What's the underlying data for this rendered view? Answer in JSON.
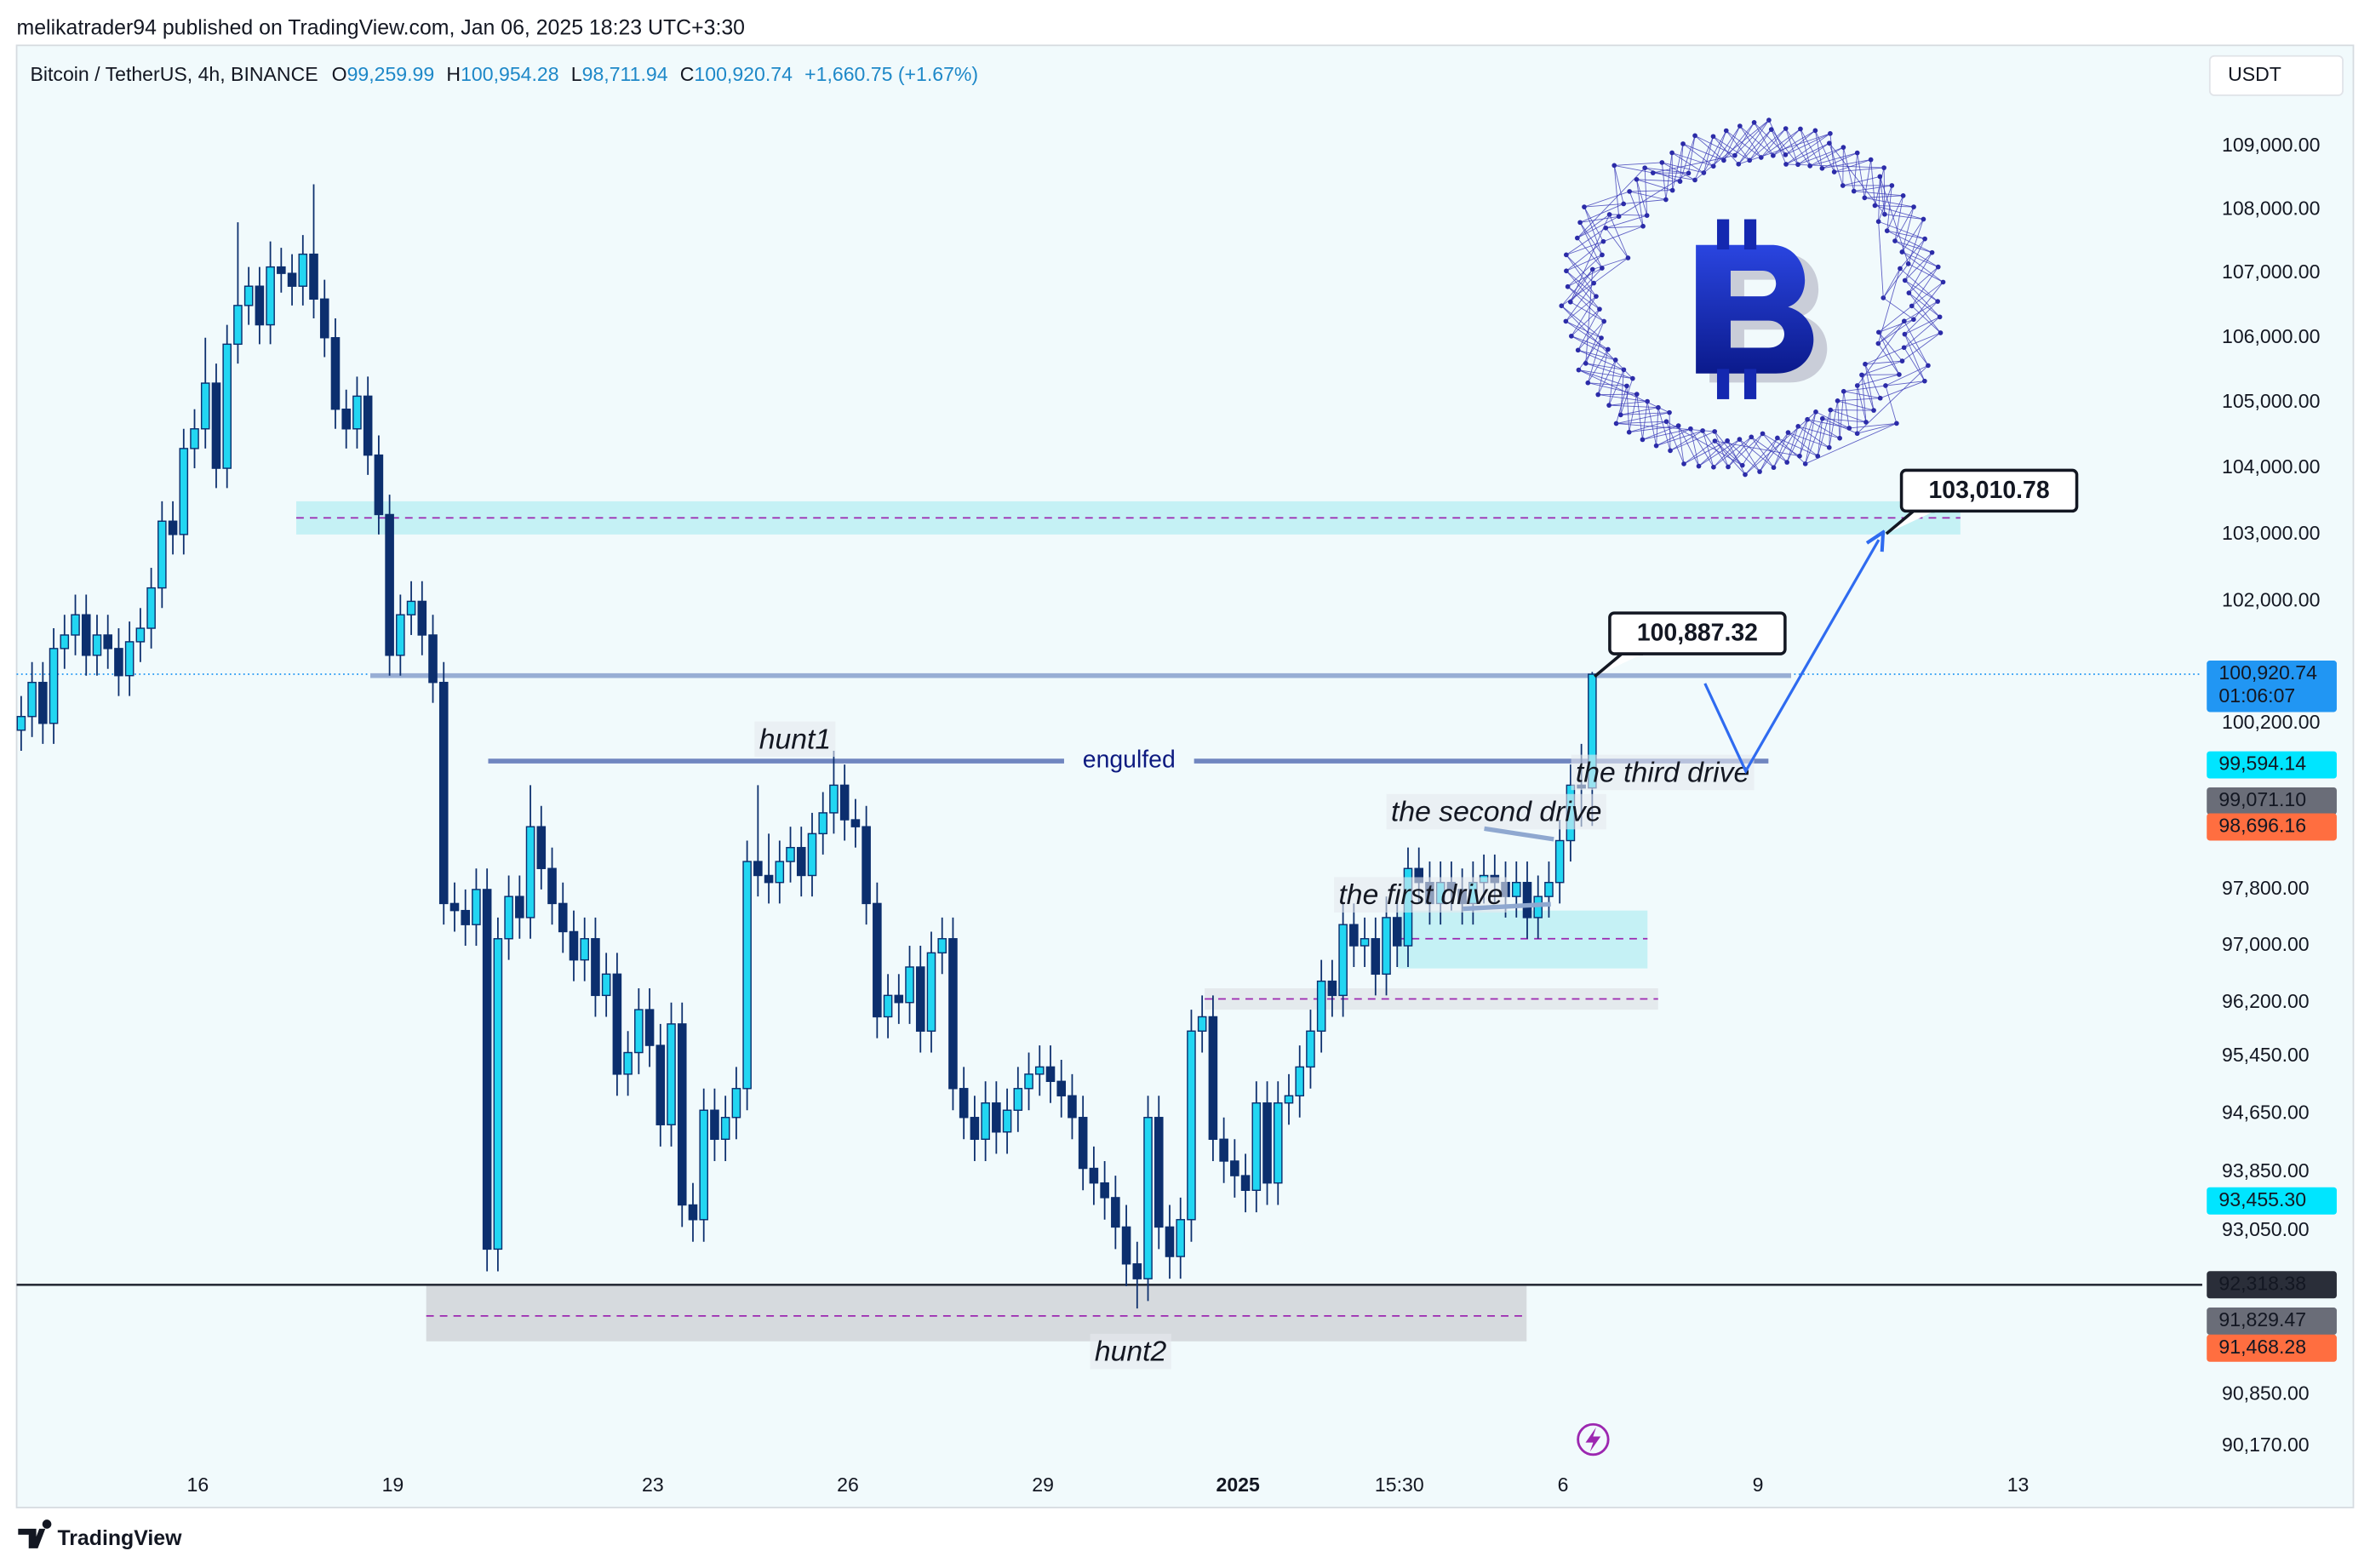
{
  "chart_data": {
    "type": "candlestick",
    "header": "melikatrader94 published on TradingView.com, Jan 06, 2025 18:23 UTC+3:30",
    "title": "Bitcoin / TetherUS, 4h, BINANCE",
    "ohlc": [
      {
        "key": "O",
        "label": "99,259.99"
      },
      {
        "key": "H",
        "label": "100,954.28"
      },
      {
        "key": "L",
        "label": "98,711.94"
      },
      {
        "key": "C",
        "label": "100,920.74"
      }
    ],
    "change": "+1,660.75 (+1.67%)",
    "currency": "USDT",
    "brand": "TradingView",
    "log_scale": true,
    "up_color": "#22d6f2",
    "down_color": "#0c2f6e",
    "wick_color": "#0c2f6e",
    "categories": [
      null,
      null,
      null,
      null,
      null,
      null,
      null,
      null,
      null,
      null,
      null,
      null,
      null,
      null,
      null,
      null,
      null,
      null,
      null,
      null,
      null,
      null,
      null,
      null,
      null,
      null,
      null,
      null,
      null,
      null,
      null,
      null,
      null,
      null,
      null,
      null,
      null,
      null,
      null,
      null,
      null,
      null,
      null,
      null,
      null,
      null,
      null,
      null,
      null,
      null,
      null,
      null,
      null,
      null,
      null,
      null,
      null,
      null,
      null,
      null,
      null,
      null,
      null,
      null,
      null,
      null,
      null,
      null,
      null,
      null,
      null,
      null,
      null,
      null,
      null,
      null,
      null,
      null,
      null,
      null,
      null,
      null,
      null,
      null,
      null,
      null,
      null,
      null,
      null,
      null,
      null,
      null,
      null,
      null,
      null,
      null,
      null,
      null,
      null,
      null,
      null,
      null,
      null,
      null,
      null,
      null,
      null,
      null,
      null,
      null,
      null,
      null,
      null,
      null,
      null,
      null,
      null,
      null,
      null,
      null,
      null,
      null,
      null,
      null,
      null,
      null,
      null,
      null,
      null,
      null,
      null,
      null,
      null,
      null,
      null,
      null,
      null,
      null,
      null,
      null,
      null,
      null,
      null,
      null,
      null,
      null
    ],
    "open": [
      100100,
      100300,
      100800,
      100200,
      101300,
      101500,
      101800,
      101200,
      101500,
      101300,
      100900,
      101400,
      101600,
      102200,
      103200,
      103000,
      104300,
      104600,
      105300,
      104000,
      105900,
      106500,
      106800,
      106200,
      107100,
      107000,
      106800,
      107300,
      106600,
      106000,
      104900,
      104600,
      105100,
      104200,
      103300,
      101200,
      101800,
      102000,
      101500,
      100800,
      97600,
      97500,
      97300,
      97800,
      92800,
      97100,
      97700,
      97400,
      98700,
      98100,
      97600,
      97200,
      96800,
      97100,
      96300,
      96600,
      95200,
      95500,
      96100,
      95600,
      94500,
      95900,
      93400,
      93200,
      94700,
      94300,
      94600,
      95000,
      98200,
      98000,
      97900,
      98200,
      98400,
      98000,
      98600,
      98900,
      99300,
      98800,
      98700,
      97600,
      96000,
      96300,
      96200,
      96700,
      95800,
      96900,
      97100,
      95000,
      94600,
      94300,
      94800,
      94400,
      94700,
      95000,
      95200,
      95300,
      95100,
      94900,
      94600,
      93900,
      93700,
      93500,
      93100,
      92600,
      92400,
      94600,
      93100,
      92700,
      93200,
      95800,
      96000,
      94300,
      94000,
      93800,
      93600,
      94800,
      93700,
      94800,
      94900,
      95300,
      95800,
      96500,
      96300,
      97300,
      97000,
      97100,
      96600,
      97400,
      97000,
      98100,
      97900,
      97600,
      97900,
      97800,
      97600,
      97900,
      98000,
      97900,
      97700,
      97900,
      97400,
      97700,
      97900,
      98500,
      99300,
      99259.99
    ],
    "high": [
      100600,
      101100,
      101100,
      101600,
      101800,
      102100,
      102100,
      101800,
      101800,
      101600,
      101700,
      101900,
      102500,
      103500,
      103500,
      104600,
      104900,
      106000,
      105600,
      106200,
      107800,
      107100,
      107100,
      107500,
      107400,
      107300,
      107600,
      108400,
      106900,
      106300,
      105200,
      105400,
      105400,
      104500,
      103600,
      102100,
      102300,
      102300,
      101800,
      101100,
      97900,
      97800,
      98100,
      98100,
      97400,
      98000,
      98000,
      99300,
      99000,
      98400,
      97900,
      97500,
      97400,
      97400,
      96900,
      96900,
      95800,
      96400,
      96400,
      95900,
      96200,
      96200,
      93700,
      95000,
      95000,
      94900,
      95300,
      98500,
      99300,
      98600,
      98500,
      98700,
      98700,
      98900,
      99200,
      99800,
      99600,
      99100,
      99000,
      97900,
      96600,
      96600,
      97000,
      97000,
      97200,
      97400,
      97400,
      95300,
      94900,
      95100,
      95100,
      95000,
      95300,
      95500,
      95600,
      95600,
      95400,
      95200,
      94900,
      94200,
      94000,
      93800,
      93400,
      92900,
      94900,
      94900,
      93400,
      93500,
      96100,
      96300,
      96300,
      94600,
      94300,
      94100,
      95100,
      95100,
      95100,
      95200,
      95600,
      96100,
      96800,
      96800,
      97600,
      97600,
      97400,
      97400,
      97700,
      97700,
      98400,
      98400,
      98200,
      98200,
      98200,
      98100,
      98200,
      98300,
      98300,
      98200,
      98200,
      98200,
      98000,
      98200,
      98800,
      99600,
      99900,
      100954.28
    ],
    "low": [
      99800,
      100000,
      99900,
      99900,
      101000,
      101200,
      100900,
      100900,
      101000,
      100600,
      100600,
      101100,
      101300,
      101900,
      102700,
      102700,
      104000,
      104300,
      103700,
      103700,
      105600,
      106200,
      105900,
      105900,
      106700,
      106500,
      106500,
      106300,
      105700,
      104600,
      104300,
      104300,
      103900,
      103000,
      100900,
      100900,
      101500,
      101200,
      100500,
      97300,
      97200,
      97000,
      97000,
      92500,
      92500,
      96800,
      97100,
      97100,
      97800,
      97300,
      96900,
      96500,
      96500,
      96000,
      96000,
      94900,
      94900,
      95200,
      95300,
      94200,
      94200,
      93100,
      92900,
      92900,
      94000,
      94000,
      94300,
      94700,
      97700,
      97600,
      97600,
      97900,
      97700,
      97700,
      98300,
      98600,
      98500,
      98400,
      97300,
      95700,
      95700,
      95900,
      95900,
      95500,
      95500,
      96600,
      94700,
      94300,
      94000,
      94000,
      94100,
      94100,
      94400,
      94700,
      94900,
      94800,
      94600,
      94300,
      93600,
      93400,
      93200,
      92800,
      92300,
      92000,
      92100,
      92800,
      92400,
      92400,
      92900,
      95500,
      94000,
      93700,
      93500,
      93300,
      93300,
      93400,
      93400,
      94500,
      94600,
      95000,
      95500,
      96000,
      96000,
      96700,
      96700,
      96300,
      96300,
      96700,
      96700,
      97600,
      97300,
      97300,
      97500,
      97300,
      97300,
      97600,
      97600,
      97400,
      97400,
      97100,
      97100,
      97400,
      97600,
      98200,
      98700,
      98711.94
    ],
    "close": [
      100300,
      100800,
      100200,
      101300,
      101500,
      101800,
      101200,
      101500,
      101300,
      100900,
      101400,
      101600,
      102200,
      103200,
      103000,
      104300,
      104600,
      105300,
      104000,
      105900,
      106500,
      106800,
      106200,
      107100,
      107000,
      106800,
      107300,
      106600,
      106000,
      104900,
      104600,
      105100,
      104200,
      103300,
      101200,
      101800,
      102000,
      101500,
      100800,
      97600,
      97500,
      97300,
      97800,
      92800,
      97100,
      97700,
      97400,
      98700,
      98100,
      97600,
      97200,
      96800,
      97100,
      96300,
      96600,
      95200,
      95500,
      96100,
      95600,
      94500,
      95900,
      93400,
      93200,
      94700,
      94300,
      94600,
      95000,
      98200,
      98000,
      97900,
      98200,
      98400,
      98000,
      98600,
      98900,
      99300,
      98800,
      98700,
      97600,
      96000,
      96300,
      96200,
      96700,
      95800,
      96900,
      97100,
      95000,
      94600,
      94300,
      94800,
      94400,
      94700,
      95000,
      95200,
      95300,
      95100,
      94900,
      94600,
      93900,
      93700,
      93500,
      93100,
      92600,
      92400,
      94600,
      93100,
      92700,
      93200,
      95800,
      96000,
      94300,
      94000,
      93800,
      93600,
      94800,
      93700,
      94800,
      94900,
      95300,
      95800,
      96500,
      96300,
      97300,
      97000,
      97100,
      96600,
      97400,
      97000,
      98100,
      97900,
      97600,
      97900,
      97800,
      97600,
      97900,
      98000,
      97900,
      97700,
      97900,
      97400,
      97700,
      97900,
      98500,
      99300,
      99260,
      100920.74
    ],
    "xlim": [
      -0.42,
      201.3
    ],
    "xticks": [
      {
        "value": 16.3,
        "label": "16"
      },
      {
        "value": 34.3,
        "label": "19"
      },
      {
        "value": 58.3,
        "label": "23"
      },
      {
        "value": 76.3,
        "label": "26"
      },
      {
        "value": 94.3,
        "label": "29"
      },
      {
        "value": 112.3,
        "label": "2025"
      },
      {
        "value": 127.2,
        "label": "15:30"
      },
      {
        "value": 142.3,
        "label": "6"
      },
      {
        "value": 160.3,
        "label": "9"
      },
      {
        "value": 184.3,
        "label": "13"
      }
    ],
    "ylim": [
      89900,
      110620
    ],
    "yticks": [
      {
        "value": 109000,
        "label": "109,000.00"
      },
      {
        "value": 108000,
        "label": "108,000.00"
      },
      {
        "value": 107000,
        "label": "107,000.00"
      },
      {
        "value": 106000,
        "label": "106,000.00"
      },
      {
        "value": 105000,
        "label": "105,000.00"
      },
      {
        "value": 104000,
        "label": "104,000.00"
      },
      {
        "value": 103000,
        "label": "103,000.00"
      },
      {
        "value": 102000,
        "label": "102,000.00"
      },
      {
        "value": 100200,
        "label": "100,200.00"
      },
      {
        "value": 97800,
        "label": "97,800.00"
      },
      {
        "value": 97000,
        "label": "97,000.00"
      },
      {
        "value": 96200,
        "label": "96,200.00"
      },
      {
        "value": 95450,
        "label": "95,450.00"
      },
      {
        "value": 94650,
        "label": "94,650.00"
      },
      {
        "value": 93850,
        "label": "93,850.00"
      },
      {
        "value": 93050,
        "label": "93,050.00"
      },
      {
        "value": 90850,
        "label": "90,850.00"
      },
      {
        "value": 90170,
        "label": "90,170.00"
      }
    ],
    "price_labels": [
      {
        "value": 100920.74,
        "label": "100,920.74",
        "timer": "01:06:07",
        "color": "#2196f3",
        "text_color": "#ffffff"
      },
      {
        "value": 99594.14,
        "label": "99,594.14",
        "color": "#00e5ff",
        "text_color": "#131722"
      },
      {
        "value": 99071.1,
        "label": "99,071.10",
        "color": "#6a6d78",
        "text_color": "#ffffff"
      },
      {
        "value": 98696.16,
        "label": "98,696.16",
        "color": "#ff6e40",
        "text_color": "#ffffff"
      },
      {
        "value": 93455.3,
        "label": "93,455.30",
        "color": "#00e5ff",
        "text_color": "#131722"
      },
      {
        "value": 92318.38,
        "label": "92,318.38",
        "color": "#2a2e39",
        "text_color": "#ffffff"
      },
      {
        "value": 91829.47,
        "label": "91,829.47",
        "color": "#6a6d78",
        "text_color": "#ffffff"
      },
      {
        "value": 91468.28,
        "label": "91,468.28",
        "color": "#ff6e40",
        "text_color": "#ffffff"
      }
    ],
    "zones": [
      {
        "low": 103000,
        "high": 103500,
        "mid": 103250,
        "color": "#bdeef3"
      },
      {
        "low": 96680,
        "high": 97500,
        "mid": 97100,
        "color": "#bdeef3"
      },
      {
        "low": 96100,
        "high": 96400,
        "mid": 96250,
        "color": "#e2e6ea"
      },
      {
        "low": 91560,
        "high": 92318,
        "mid": 91900,
        "color": "#d1d4d8"
      }
    ],
    "levels": [
      {
        "value": 100900
      },
      {
        "value": 99650,
        "label": "engulfed"
      }
    ],
    "callouts": [
      {
        "value": 100887.32,
        "label": "100,887.32"
      },
      {
        "value": 103010.78,
        "label": "103,010.78"
      }
    ],
    "annotations": [
      "hunt1",
      "hunt2",
      "the first drive",
      "the second drive",
      "the third drive"
    ]
  }
}
